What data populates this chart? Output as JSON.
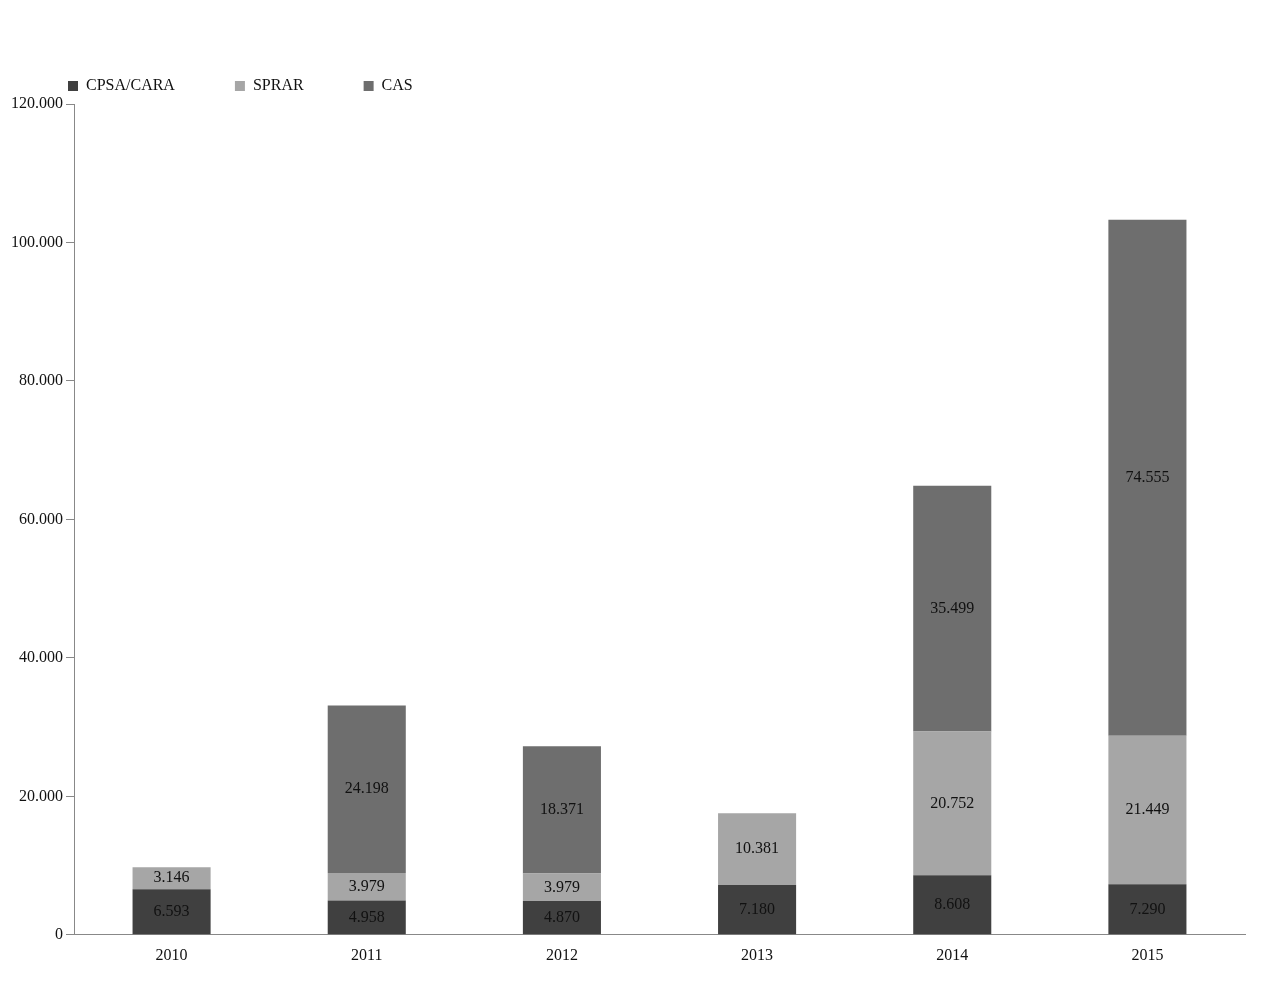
{
  "chart_data": {
    "type": "bar",
    "stacked": true,
    "categories": [
      "2010",
      "2011",
      "2012",
      "2013",
      "2014",
      "2015"
    ],
    "series": [
      {
        "name": "CPSA/CARA",
        "color": "#404040",
        "values": [
          6593,
          4958,
          4870,
          7180,
          8608,
          7290
        ],
        "value_labels": [
          "6.593",
          "4.958",
          "4.870",
          "7.180",
          "8.608",
          "7.290"
        ]
      },
      {
        "name": "SPRAR",
        "color": "#a6a6a6",
        "values": [
          3146,
          3979,
          3979,
          10381,
          20752,
          21449
        ],
        "value_labels": [
          "3.146",
          "3.979",
          "3.979",
          "10.381",
          "20.752",
          "21.449"
        ]
      },
      {
        "name": "CAS",
        "color": "#6e6e6e",
        "values": [
          null,
          24198,
          18371,
          null,
          35499,
          74555
        ],
        "value_labels": [
          null,
          "24.198",
          "18.371",
          null,
          "35.499",
          "74.555"
        ]
      }
    ],
    "ylim": [
      0,
      120000
    ],
    "yticks": [
      {
        "value": 0,
        "label": "0"
      },
      {
        "value": 20000,
        "label": "20.000"
      },
      {
        "value": 40000,
        "label": "40.000"
      },
      {
        "value": 60000,
        "label": "60.000"
      },
      {
        "value": 80000,
        "label": "80.000"
      },
      {
        "value": 100000,
        "label": "100.000"
      },
      {
        "value": 120000,
        "label": "120.000"
      }
    ],
    "grid": false,
    "legend": "top left"
  }
}
